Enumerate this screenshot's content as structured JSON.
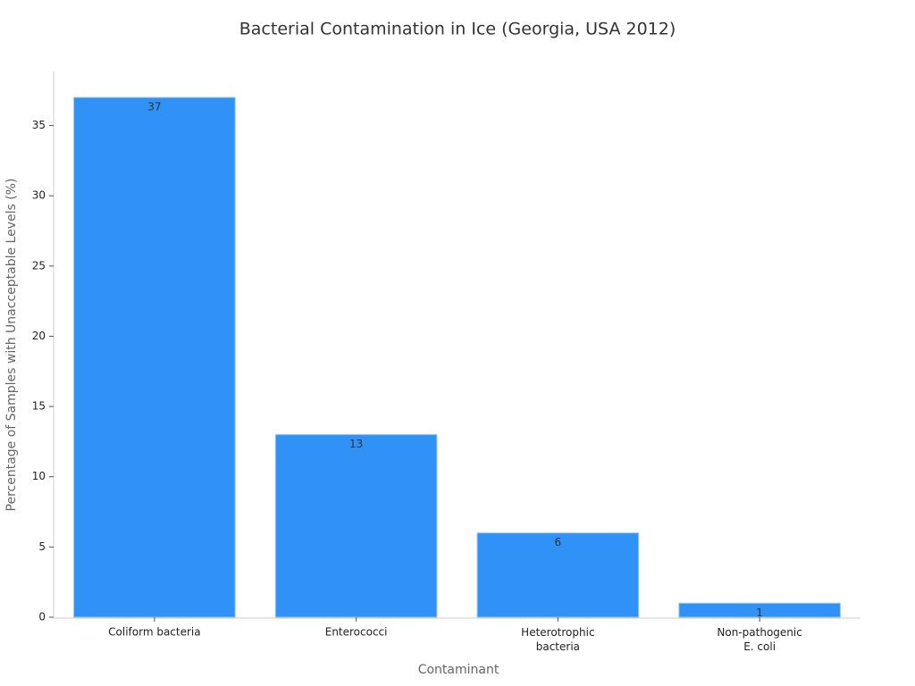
{
  "chart_data": {
    "type": "bar",
    "title": "Bacterial Contamination in Ice (Georgia, USA 2012)",
    "x_label": "Contaminant",
    "y_label": "Percentage of Samples with Unacceptable Levels (%)",
    "categories": [
      "Coliform bacteria",
      "Enterococci",
      "Heterotrophic\nbacteria",
      "Non-pathogenic\nE. coli"
    ],
    "values": [
      37,
      13,
      6,
      1
    ],
    "color": "#3091f7",
    "ylim": [
      0,
      38.85
    ],
    "yticks": [
      0,
      5,
      10,
      15,
      20,
      25,
      30,
      35
    ],
    "grid": false
  }
}
